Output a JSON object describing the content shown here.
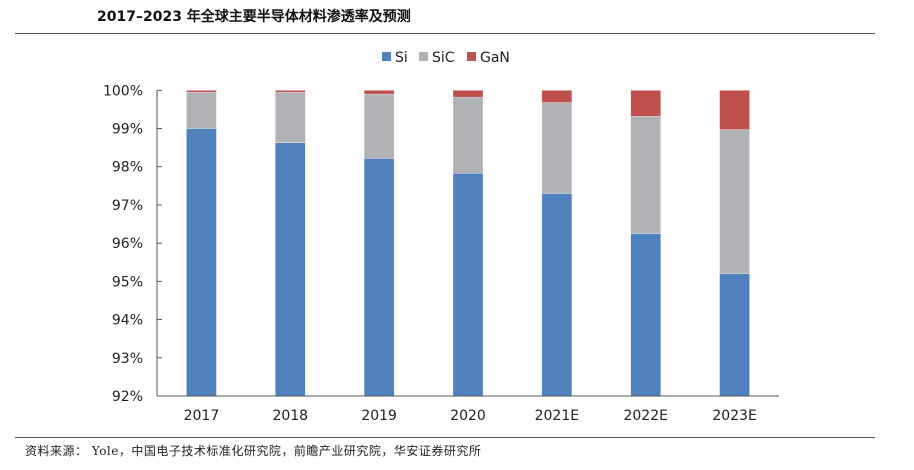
{
  "page": {
    "title": "2017–2023 年全球主要半导体材料渗透率及预测",
    "source": "资料来源： Yole，中国电子技术标准化研究院，前瞻产业研究院，华安证券研究所"
  },
  "chart_data": {
    "type": "bar",
    "stacked": true,
    "title": "2017–2023 年全球主要半导体材料渗透率及预测",
    "xlabel": "",
    "ylabel": "",
    "categories": [
      "2017",
      "2018",
      "2019",
      "2020",
      "2021E",
      "2022E",
      "2023E"
    ],
    "series": [
      {
        "name": "Si",
        "color": "#4E81BD",
        "values": [
          99.0,
          98.63,
          98.22,
          97.83,
          97.3,
          96.25,
          95.2
        ]
      },
      {
        "name": "SiC",
        "color": "#B1B2B6",
        "values": [
          0.95,
          1.32,
          1.68,
          1.99,
          2.38,
          3.07,
          3.77
        ]
      },
      {
        "name": "GaN",
        "color": "#C0504D",
        "values": [
          0.05,
          0.05,
          0.1,
          0.18,
          0.32,
          0.68,
          1.03
        ]
      }
    ],
    "ylim": [
      92,
      100
    ],
    "yticks": [
      92,
      93,
      94,
      95,
      96,
      97,
      98,
      99,
      100
    ],
    "ytick_labels": [
      "92%",
      "93%",
      "94%",
      "95%",
      "96%",
      "97%",
      "98%",
      "99%",
      "100%"
    ],
    "legend": {
      "position": "top-center",
      "entries": [
        "Si",
        "SiC",
        "GaN"
      ]
    },
    "grid": false
  }
}
